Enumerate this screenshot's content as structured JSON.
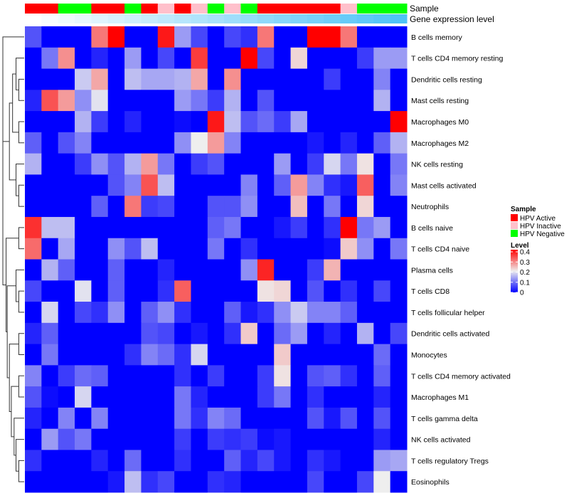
{
  "chart_data": {
    "type": "heatmap",
    "annotation_labels": {
      "sample": "Sample",
      "gene": "Gene expression level"
    },
    "legend": {
      "sample_title": "Sample",
      "sample_entries": [
        {
          "label": "HPV Active",
          "color": "#ff0000"
        },
        {
          "label": "HPV Inactive",
          "color": "#ffc0cb"
        },
        {
          "label": "HPV Negative",
          "color": "#00ff00"
        }
      ],
      "level_title": "Level",
      "level_ticks": [
        "0.4",
        "0.3",
        "0.2",
        "0.1",
        "0"
      ],
      "level_tick_values": [
        0.4,
        0.3,
        0.2,
        0.1,
        0
      ],
      "colors": {
        "low": "#0000ff",
        "mid": "#eeeeee",
        "high": "#ff0000"
      },
      "range": [
        0,
        0.4
      ]
    },
    "sample_groups": [
      "HPV Active",
      "HPV Active",
      "HPV Negative",
      "HPV Negative",
      "HPV Active",
      "HPV Active",
      "HPV Negative",
      "HPV Active",
      "HPV Inactive",
      "HPV Active",
      "HPV Inactive",
      "HPV Negative",
      "HPV Inactive",
      "HPV Negative",
      "HPV Active",
      "HPV Active",
      "HPV Active",
      "HPV Active",
      "HPV Active",
      "HPV Inactive",
      "HPV Negative",
      "HPV Negative",
      "HPV Negative"
    ],
    "rows": [
      "B cells memory",
      "T cells CD4 memory resting",
      "Dendritic cells resting",
      "Mast cells resting",
      "Macrophages M0",
      "Macrophages M2",
      "NK cells resting",
      "Mast cells activated",
      "Neutrophils",
      "B cells naive",
      "T cells CD4 naive",
      "Plasma cells",
      "T cells CD8",
      "T cells follicular helper",
      "Dendritic cells activated",
      "Monocytes",
      "T cells CD4 memory activated",
      "Macrophages M1",
      "T cells gamma delta",
      "NK cells activated",
      "T cells regulatory  Tregs",
      "Eosinophils"
    ],
    "values": [
      [
        0.07,
        0,
        0,
        0,
        0.3,
        0.4,
        0,
        0,
        0.38,
        0.13,
        0.06,
        0,
        0.06,
        0.04,
        0.3,
        0,
        0,
        0.4,
        0.4,
        0.3,
        0,
        0,
        0
      ],
      [
        0,
        0.1,
        0.28,
        0,
        0.03,
        0,
        0.13,
        0,
        0.06,
        0,
        0.35,
        0,
        0,
        0.4,
        0.06,
        0,
        0.22,
        0,
        0,
        0,
        0.05,
        0.13,
        0.13
      ],
      [
        0,
        0,
        0,
        0.17,
        0.26,
        0,
        0.16,
        0.14,
        0.14,
        0.15,
        0.26,
        0,
        0.28,
        0,
        0,
        0,
        0,
        0,
        0.05,
        0,
        0,
        0.11,
        0
      ],
      [
        0.03,
        0.33,
        0.27,
        0.12,
        0.19,
        0,
        0,
        0,
        0,
        0.13,
        0.1,
        0.05,
        0.15,
        0,
        0.07,
        0,
        0,
        0,
        0,
        0,
        0,
        0.15,
        0
      ],
      [
        0,
        0,
        0,
        0.15,
        0.05,
        0,
        0.03,
        0,
        0,
        0.01,
        0,
        0.38,
        0.16,
        0.07,
        0.09,
        0.05,
        0.14,
        0,
        0,
        0,
        0,
        0,
        0.4
      ],
      [
        0.08,
        0,
        0.07,
        0.11,
        0,
        0,
        0,
        0,
        0,
        0.12,
        0.2,
        0.27,
        0.11,
        0,
        0,
        0,
        0,
        0.02,
        0,
        0.03,
        0,
        0.08,
        0.15
      ],
      [
        0.15,
        0,
        0,
        0.05,
        0.12,
        0.07,
        0.15,
        0.27,
        0.1,
        0,
        0.05,
        0.07,
        0,
        0,
        0,
        0.13,
        0,
        0.05,
        0.18,
        0.1,
        0.21,
        0,
        0.1
      ],
      [
        0,
        0,
        0,
        0,
        0,
        0.07,
        0.11,
        0.33,
        0.16,
        0,
        0,
        0,
        0,
        0.11,
        0,
        0.08,
        0.27,
        0.11,
        0.04,
        0.02,
        0.32,
        0,
        0.11
      ],
      [
        0,
        0,
        0,
        0,
        0.08,
        0,
        0.3,
        0.05,
        0.06,
        0,
        0,
        0.07,
        0.07,
        0.12,
        0,
        0,
        0.24,
        0,
        0.1,
        0,
        0.22,
        0,
        0
      ],
      [
        0.36,
        0.16,
        0.16,
        0,
        0,
        0,
        0,
        0,
        0,
        0,
        0,
        0.08,
        0.1,
        0,
        0,
        0.02,
        0.05,
        0,
        0.04,
        0.4,
        0.1,
        0.13,
        0
      ],
      [
        0.31,
        0,
        0.14,
        0,
        0,
        0.12,
        0.07,
        0.16,
        0,
        0,
        0,
        0.1,
        0,
        0.04,
        0,
        0,
        0,
        0,
        0.01,
        0.23,
        0.12,
        0,
        0.1
      ],
      [
        0,
        0.15,
        0.08,
        0,
        0,
        0.08,
        0,
        0,
        0.03,
        0,
        0,
        0,
        0,
        0.12,
        0.37,
        0,
        0,
        0.05,
        0.25,
        0,
        0,
        0,
        0
      ],
      [
        0.06,
        0,
        0,
        0.19,
        0,
        0.08,
        0,
        0,
        0.04,
        0.32,
        0,
        0,
        0,
        0,
        0.21,
        0.22,
        0,
        0.07,
        0,
        0.04,
        0,
        0.06,
        0
      ],
      [
        0,
        0.18,
        0,
        0.06,
        0.04,
        0.12,
        0,
        0.08,
        0.12,
        0.04,
        0,
        0,
        0.08,
        0.02,
        0.04,
        0.12,
        0.17,
        0.11,
        0.11,
        0.08,
        0,
        0,
        0
      ],
      [
        0.03,
        0.08,
        0,
        0,
        0,
        0,
        0,
        0.07,
        0.06,
        0,
        0.02,
        0,
        0.04,
        0.23,
        0,
        0.09,
        0.13,
        0,
        0.03,
        0,
        0.15,
        0,
        0.06
      ],
      [
        0,
        0.1,
        0,
        0,
        0,
        0,
        0.04,
        0.11,
        0.09,
        0.04,
        0.18,
        0,
        0,
        0,
        0,
        0.23,
        0,
        0,
        0,
        0,
        0,
        0.09,
        0
      ],
      [
        0.11,
        0,
        0.05,
        0.09,
        0.08,
        0,
        0,
        0,
        0,
        0.04,
        0,
        0.05,
        0,
        0,
        0.05,
        0.21,
        0,
        0.07,
        0.08,
        0.04,
        0,
        0.08,
        0
      ],
      [
        0.07,
        0.01,
        0,
        0.18,
        0,
        0,
        0,
        0,
        0,
        0.1,
        0.03,
        0,
        0,
        0,
        0.05,
        0.1,
        0,
        0.04,
        0,
        0,
        0,
        0.03,
        0
      ],
      [
        0.03,
        0,
        0.11,
        0,
        0.11,
        0,
        0,
        0,
        0,
        0.1,
        0.04,
        0.11,
        0.09,
        0,
        0,
        0,
        0,
        0.07,
        0.02,
        0.07,
        0,
        0.07,
        0
      ],
      [
        0,
        0.13,
        0.07,
        0.1,
        0,
        0,
        0,
        0,
        0,
        0.05,
        0,
        0.05,
        0.04,
        0.05,
        0.01,
        0.02,
        0,
        0,
        0,
        0,
        0,
        0.03,
        0
      ],
      [
        0.04,
        0,
        0,
        0,
        0.03,
        0,
        0.09,
        0,
        0,
        0.04,
        0,
        0,
        0.08,
        0.03,
        0.06,
        0.02,
        0,
        0.04,
        0.02,
        0,
        0,
        0.13,
        0.14
      ],
      [
        0,
        0,
        0,
        0,
        0,
        0.02,
        0.16,
        0.04,
        0.06,
        0,
        0,
        0.04,
        0.03,
        0,
        0,
        0,
        0,
        0.06,
        0,
        0,
        0.06,
        0.2,
        0
      ]
    ]
  }
}
